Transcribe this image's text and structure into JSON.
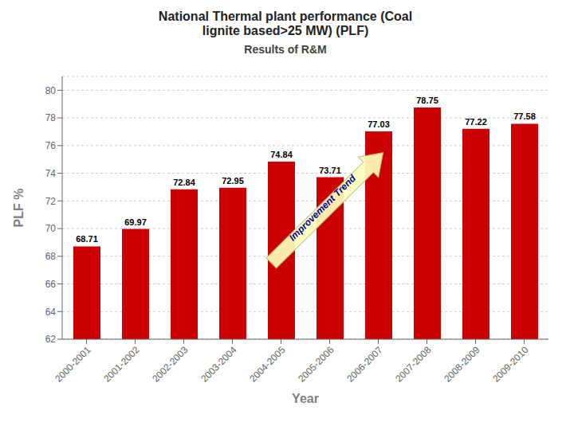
{
  "chart_data": {
    "type": "bar",
    "title": "National Thermal plant performance (Coal\nlignite based>25 MW) (PLF)",
    "subtitle": "Results of R&M",
    "categories": [
      "2000-2001",
      "2001-2002",
      "2002-2003",
      "2003-2004",
      "2004-2005",
      "2005-2006",
      "2006-2007",
      "2007-2008",
      "2008-2009",
      "2009-2010"
    ],
    "values": [
      68.71,
      69.97,
      72.84,
      72.95,
      74.84,
      73.71,
      77.03,
      78.75,
      77.22,
      77.58
    ],
    "color": "#cc0000",
    "xlabel": "Year",
    "ylabel": "PLF %",
    "ylim": [
      62,
      81
    ],
    "yticks": [
      62,
      64,
      66,
      68,
      70,
      72,
      74,
      76,
      78,
      80
    ],
    "grid": true,
    "data_labels": true,
    "annotation": "Improvement Trend"
  }
}
